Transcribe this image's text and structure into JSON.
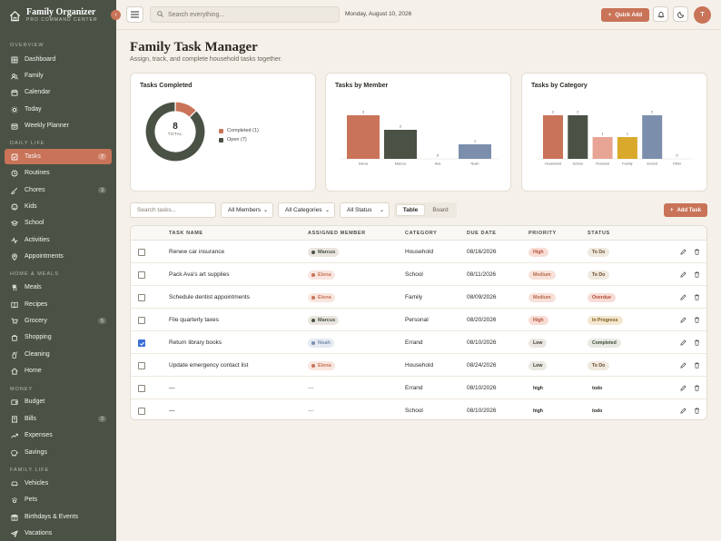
{
  "sidebar": {
    "brand_title": "Family Organizer",
    "brand_subtitle": "PRO COMMAND CENTER",
    "sections": [
      "OVERVIEW",
      "DAILY LIFE",
      "HOME & MEALS",
      "MONEY",
      "FAMILY LIFE"
    ],
    "items": [
      {
        "label": "Dashboard",
        "icon": "grid-icon"
      },
      {
        "label": "Family",
        "icon": "users-icon"
      },
      {
        "label": "Calendar",
        "icon": "calendar-icon"
      },
      {
        "label": "Today",
        "icon": "sun-icon"
      },
      {
        "label": "Weekly Planner",
        "icon": "calendar-week-icon"
      },
      {
        "label": "Tasks",
        "icon": "checkbox-icon",
        "badge": "7",
        "active": true
      },
      {
        "label": "Routines",
        "icon": "clock-icon"
      },
      {
        "label": "Chores",
        "icon": "brush-icon",
        "badge": "3"
      },
      {
        "label": "Kids",
        "icon": "smile-icon"
      },
      {
        "label": "School",
        "icon": "school-icon"
      },
      {
        "label": "Activities",
        "icon": "activity-icon"
      },
      {
        "label": "Appointments",
        "icon": "pin-icon"
      },
      {
        "label": "Meals",
        "icon": "meal-icon"
      },
      {
        "label": "Recipes",
        "icon": "book-icon"
      },
      {
        "label": "Grocery",
        "icon": "cart-icon",
        "badge": "5"
      },
      {
        "label": "Shopping",
        "icon": "bag-icon"
      },
      {
        "label": "Cleaning",
        "icon": "spray-icon"
      },
      {
        "label": "Home",
        "icon": "home-icon"
      },
      {
        "label": "Budget",
        "icon": "wallet-icon"
      },
      {
        "label": "Bills",
        "icon": "receipt-icon",
        "badge": "2"
      },
      {
        "label": "Expenses",
        "icon": "trend-icon"
      },
      {
        "label": "Savings",
        "icon": "piggy-icon"
      },
      {
        "label": "Vehicles",
        "icon": "car-icon"
      },
      {
        "label": "Pets",
        "icon": "paw-icon"
      },
      {
        "label": "Birthdays & Events",
        "icon": "gift-icon"
      },
      {
        "label": "Vacations",
        "icon": "plane-icon"
      }
    ]
  },
  "topbar": {
    "search_placeholder": "Search everything...",
    "date": "Monday, August 10, 2026",
    "quick_add": "Quick Add",
    "avatar_initial": "T"
  },
  "page": {
    "title": "Family Task Manager",
    "subtitle": "Assign, track, and complete household tasks together."
  },
  "cards": {
    "completed": {
      "title": "Tasks Completed",
      "total": "8",
      "total_label": "TOTAL",
      "legend": [
        "Completed (1)",
        "Open (7)"
      ]
    },
    "by_member": {
      "title": "Tasks by Member"
    },
    "by_category": {
      "title": "Tasks by Category"
    }
  },
  "chart_data": [
    {
      "type": "pie",
      "title": "Tasks Completed",
      "categories": [
        "Completed",
        "Open"
      ],
      "values": [
        1,
        7
      ],
      "colors": [
        "#c97358",
        "#4a5245"
      ]
    },
    {
      "type": "bar",
      "title": "Tasks by Member",
      "categories": [
        "Elena",
        "Marcus",
        "Ava",
        "Noah"
      ],
      "values": [
        3,
        2,
        0,
        1
      ],
      "colors": [
        "#c97358",
        "#4a5245",
        "#e8a595",
        "#7b8fad"
      ],
      "ylim": [
        0,
        3
      ]
    },
    {
      "type": "bar",
      "title": "Tasks by Category",
      "categories": [
        "Household",
        "School",
        "Personal",
        "Family",
        "Errand",
        "Other"
      ],
      "values": [
        2,
        2,
        1,
        1,
        2,
        0
      ],
      "colors": [
        "#c97358",
        "#4a5245",
        "#e8a595",
        "#d9a92b",
        "#7b8fad",
        "#cfcac1"
      ],
      "ylim": [
        0,
        2
      ]
    }
  ],
  "filters": {
    "search_placeholder": "Search tasks...",
    "members": "All Members",
    "categories": "All Categories",
    "status": "All Status",
    "view_table": "Table",
    "view_board": "Board",
    "add_task": "Add Task"
  },
  "table": {
    "headers": [
      "TASK NAME",
      "ASSIGNED MEMBER",
      "CATEGORY",
      "DUE DATE",
      "PRIORITY",
      "STATUS"
    ],
    "rows": [
      {
        "task": "Renew car insurance",
        "member": "Marcus",
        "category": "Household",
        "due": "08/16/2026",
        "priority": "High",
        "status": "To Do",
        "checked": false
      },
      {
        "task": "Pack Ava's art supplies",
        "member": "Elena",
        "category": "School",
        "due": "08/11/2026",
        "priority": "Medium",
        "status": "To Do",
        "checked": false
      },
      {
        "task": "Schedule dentist appointments",
        "member": "Elena",
        "category": "Family",
        "due": "08/09/2026",
        "priority": "Medium",
        "status": "Overdue",
        "checked": false
      },
      {
        "task": "File quarterly taxes",
        "member": "Marcus",
        "category": "Personal",
        "due": "08/20/2026",
        "priority": "High",
        "status": "In Progress",
        "checked": false
      },
      {
        "task": "Return library books",
        "member": "Noah",
        "category": "Errand",
        "due": "08/10/2026",
        "priority": "Low",
        "status": "Completed",
        "checked": true
      },
      {
        "task": "Update emergency contact list",
        "member": "Elena",
        "category": "Household",
        "due": "08/24/2026",
        "priority": "Low",
        "status": "To Do",
        "checked": false
      },
      {
        "task": "—",
        "member": "—",
        "category": "Errand",
        "due": "08/10/2026",
        "priority": "high",
        "status": "todo",
        "checked": false
      },
      {
        "task": "—",
        "member": "—",
        "category": "School",
        "due": "08/10/2026",
        "priority": "high",
        "status": "todo",
        "checked": false
      }
    ]
  }
}
